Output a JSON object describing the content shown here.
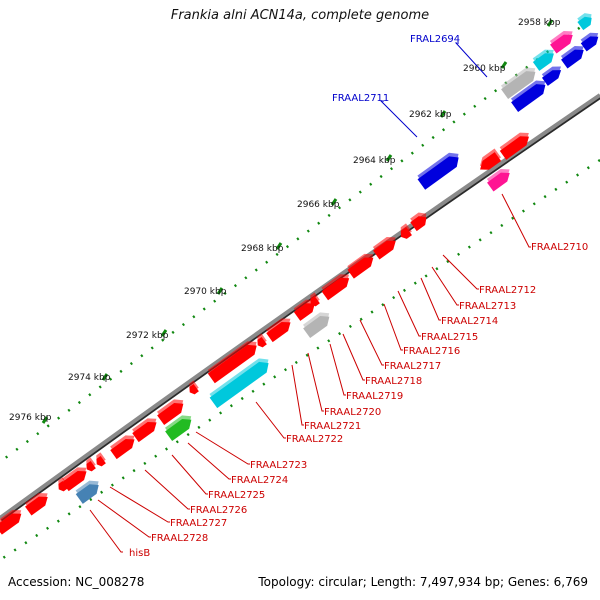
{
  "title": "Frankia alni ACN14a, complete genome",
  "footer": {
    "accession": "Accession: NC_008278",
    "summary": "Topology: circular; Length: 7,497,934 bp; Genes: 6,769"
  },
  "kbp_ticks": [
    {
      "label": "2958 kbp"
    },
    {
      "label": "2960 kbp"
    },
    {
      "label": "2962 kbp"
    },
    {
      "label": "2964 kbp"
    },
    {
      "label": "2966 kbp"
    },
    {
      "label": "2968 kbp"
    },
    {
      "label": "2970 kbp"
    },
    {
      "label": "2972 kbp"
    },
    {
      "label": "2974 kbp"
    },
    {
      "label": "2976 kbp"
    }
  ],
  "gene_labels": {
    "outer_blue": [
      "FRAL2694",
      "FRAAL2711"
    ],
    "inner_red": [
      "FRAAL2710",
      "FRAAL2712",
      "FRAAL2713",
      "FRAAL2714",
      "FRAAL2715",
      "FRAAL2716",
      "FRAAL2717",
      "FRAAL2718",
      "FRAAL2719",
      "FRAAL2720",
      "FRAAL2721",
      "FRAAL2722",
      "FRAAL2723",
      "FRAAL2724",
      "FRAAL2725",
      "FRAAL2726",
      "FRAAL2727",
      "FRAAL2728",
      "hisB"
    ]
  },
  "colors": {
    "backbone": "#7a7a7a",
    "cds_red": "#ff0000",
    "cds_blue": "#0000dd",
    "cds_cyan": "#00c8dc",
    "cds_pink": "#ff1493",
    "cds_grey": "#b4b4b4",
    "cds_green": "#22bb22",
    "cds_steel": "#4682b4",
    "tick_green": "#118811",
    "label_blue": "#0000cc",
    "label_red": "#cc0000"
  }
}
